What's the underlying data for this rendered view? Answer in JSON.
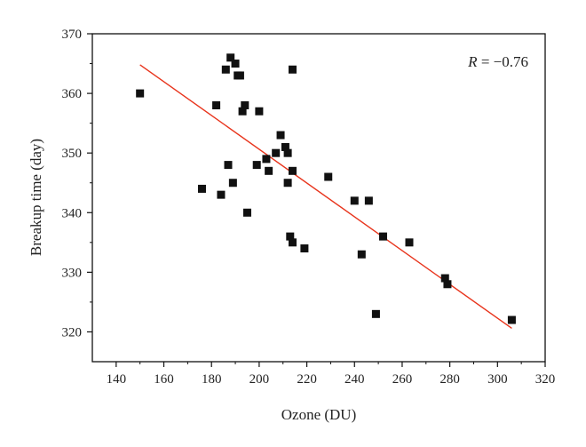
{
  "chart_data": {
    "type": "scatter",
    "title": "",
    "xlabel": "Ozone (DU)",
    "ylabel": "Breakup time (day)",
    "xlim": [
      130,
      320
    ],
    "ylim": [
      315,
      370
    ],
    "xticks": [
      140,
      160,
      180,
      200,
      220,
      240,
      260,
      280,
      300,
      320
    ],
    "yticks": [
      320,
      330,
      340,
      350,
      360,
      370
    ],
    "annotation": {
      "var": "R",
      "rest": " = −0.76"
    },
    "marker_color": "#111111",
    "fit_color": "#e8341c",
    "series": [
      {
        "points": [
          {
            "x": 150,
            "y": 360
          },
          {
            "x": 176,
            "y": 344
          },
          {
            "x": 182,
            "y": 358
          },
          {
            "x": 184,
            "y": 343
          },
          {
            "x": 186,
            "y": 364
          },
          {
            "x": 187,
            "y": 348
          },
          {
            "x": 188,
            "y": 366
          },
          {
            "x": 189,
            "y": 345
          },
          {
            "x": 190,
            "y": 365
          },
          {
            "x": 191,
            "y": 363
          },
          {
            "x": 192,
            "y": 363
          },
          {
            "x": 193,
            "y": 357
          },
          {
            "x": 194,
            "y": 358
          },
          {
            "x": 195,
            "y": 340
          },
          {
            "x": 199,
            "y": 348
          },
          {
            "x": 200,
            "y": 357
          },
          {
            "x": 203,
            "y": 349
          },
          {
            "x": 204,
            "y": 347
          },
          {
            "x": 207,
            "y": 350
          },
          {
            "x": 209,
            "y": 353
          },
          {
            "x": 211,
            "y": 351
          },
          {
            "x": 212,
            "y": 350
          },
          {
            "x": 212,
            "y": 345
          },
          {
            "x": 213,
            "y": 336
          },
          {
            "x": 214,
            "y": 335
          },
          {
            "x": 214,
            "y": 364
          },
          {
            "x": 214,
            "y": 347
          },
          {
            "x": 219,
            "y": 334
          },
          {
            "x": 229,
            "y": 346
          },
          {
            "x": 240,
            "y": 342
          },
          {
            "x": 243,
            "y": 333
          },
          {
            "x": 246,
            "y": 342
          },
          {
            "x": 249,
            "y": 323
          },
          {
            "x": 252,
            "y": 336
          },
          {
            "x": 263,
            "y": 335
          },
          {
            "x": 278,
            "y": 329
          },
          {
            "x": 279,
            "y": 328
          },
          {
            "x": 306,
            "y": 322
          }
        ]
      }
    ],
    "fit_line": [
      {
        "x": 150,
        "y": 364.8
      },
      {
        "x": 306,
        "y": 320.6
      }
    ]
  }
}
